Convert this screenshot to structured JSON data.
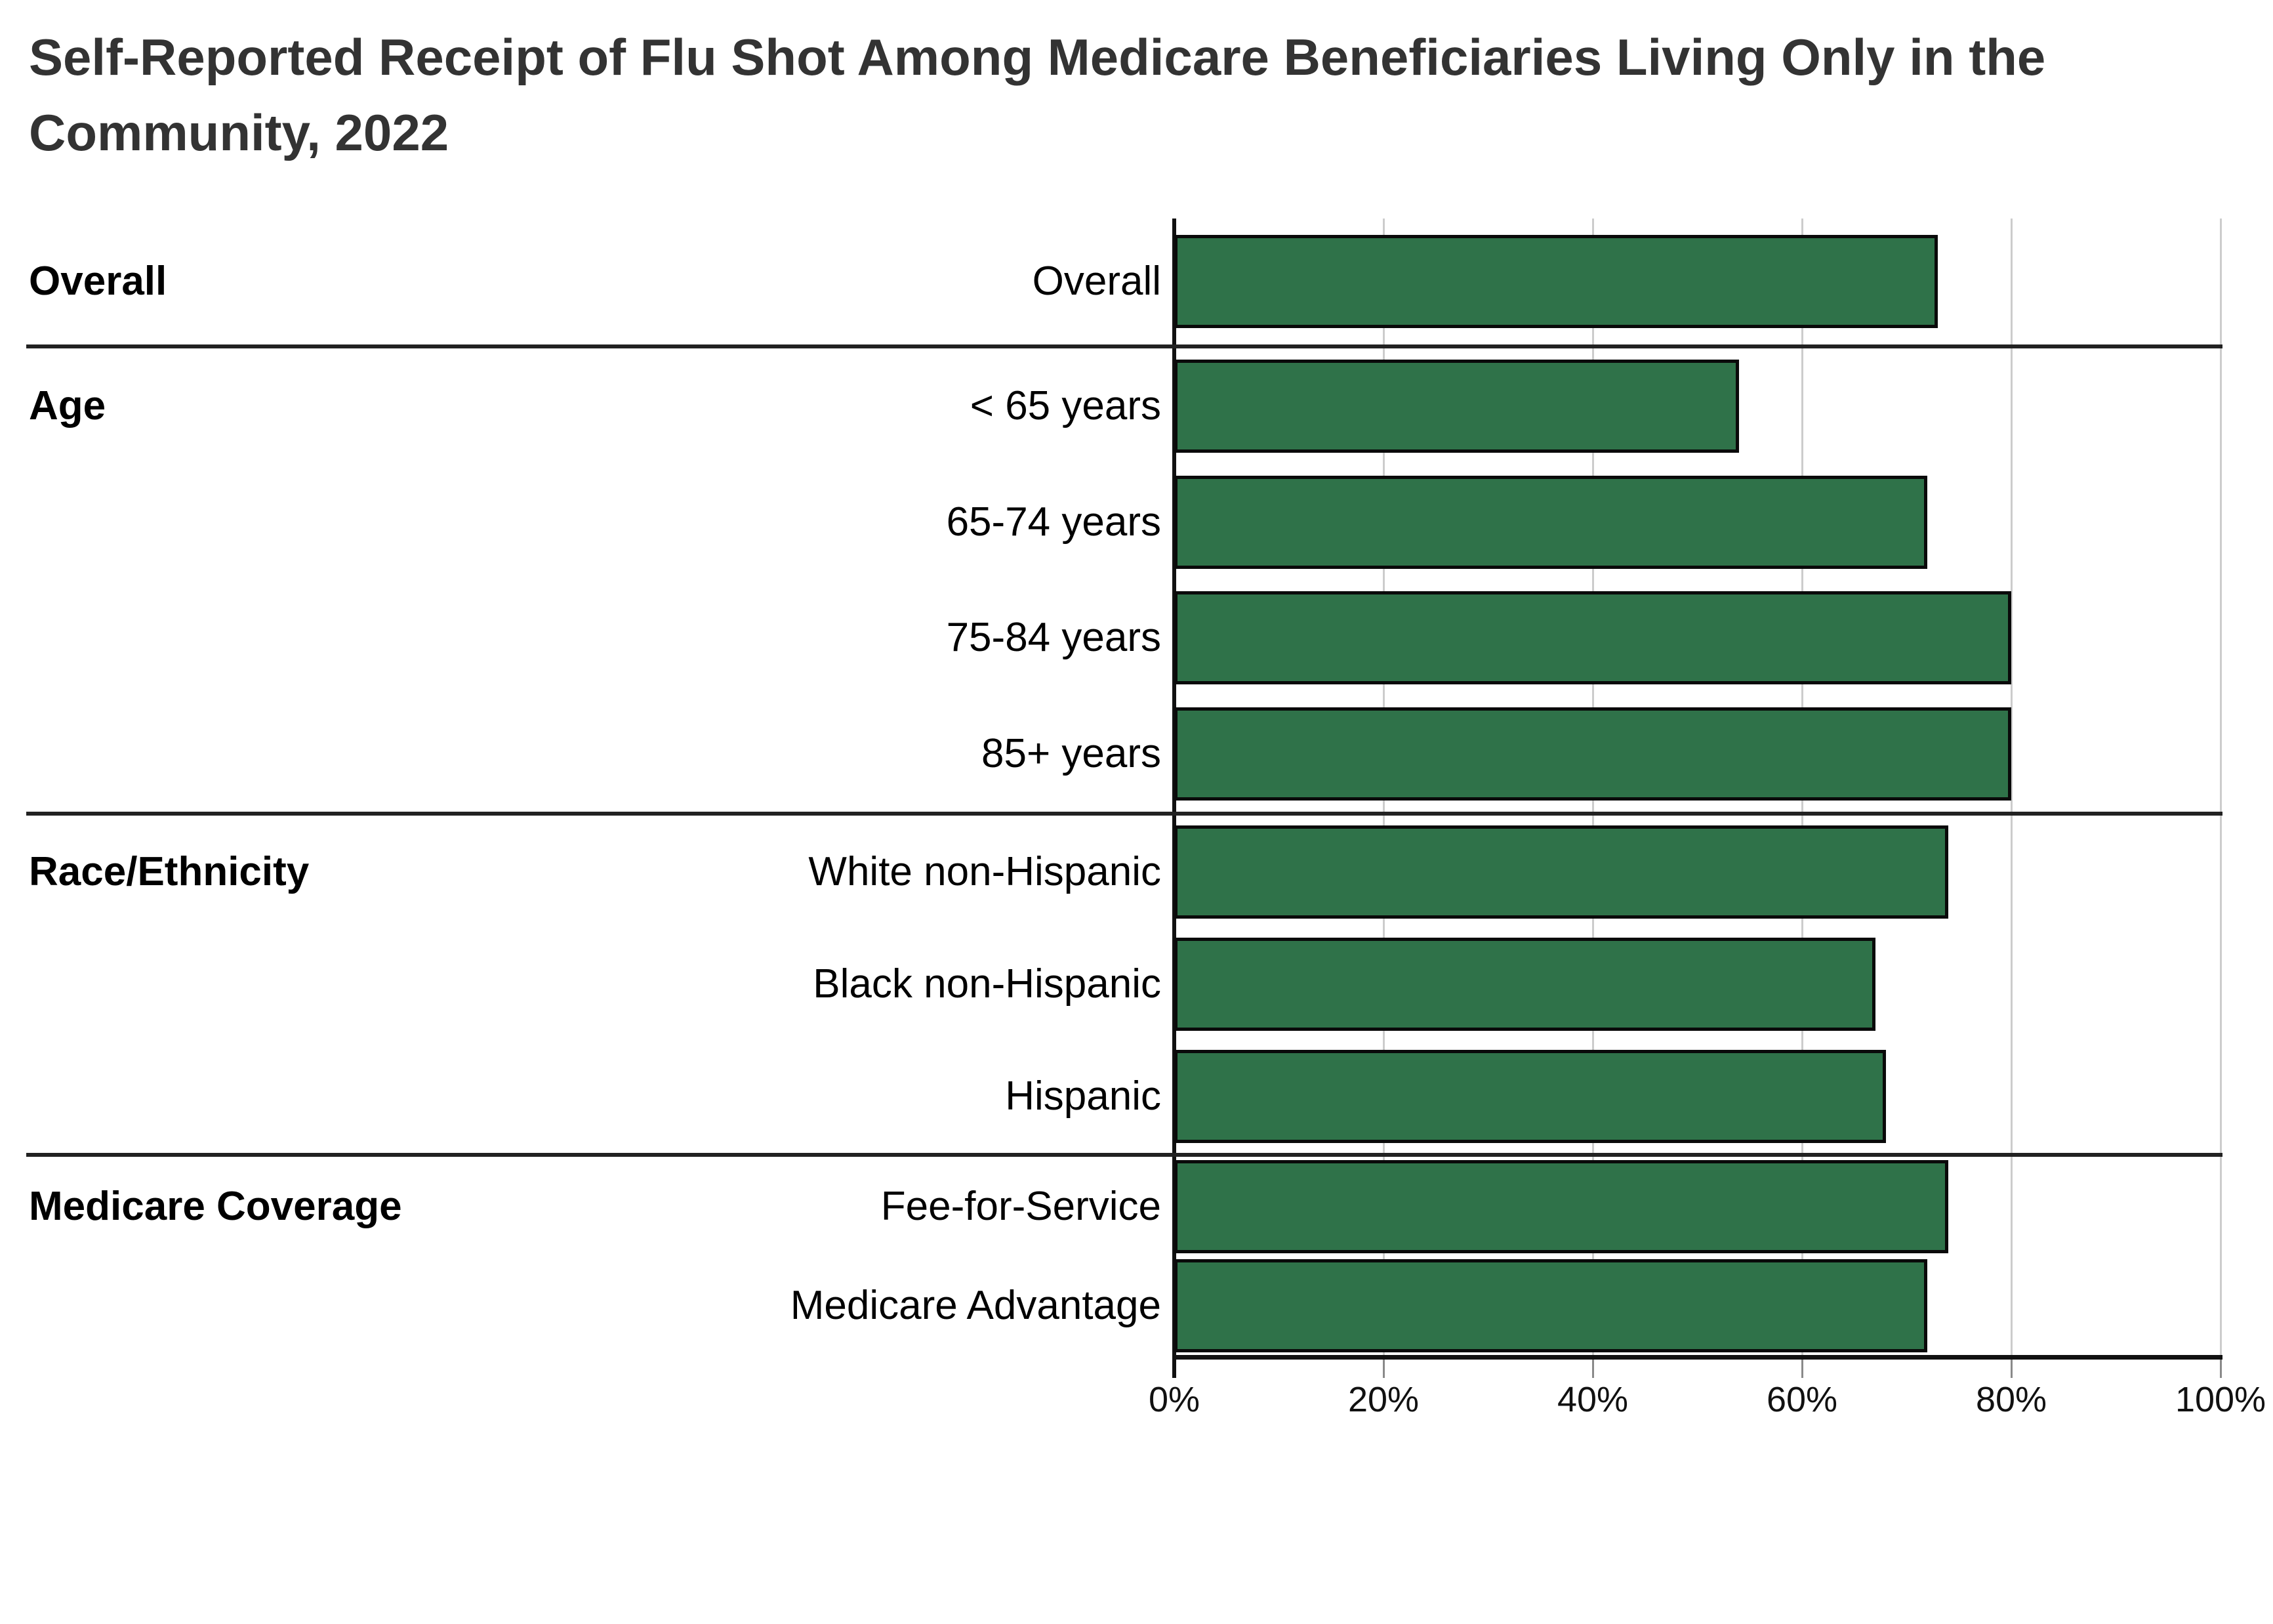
{
  "page": {
    "background": "#ffffff"
  },
  "title": {
    "lines": [
      "Self-Reported Receipt of Flu Shot Among Medicare Beneficiaries Living Only in the",
      "Community, 2022"
    ],
    "full_text": "Self-Reported Receipt of Flu Shot Among Medicare Beneficiaries Living Only in the Community, 2022",
    "color": "#333333"
  },
  "colors": {
    "bar_fill": "#2f7249",
    "bar_border": "#0a0a0a",
    "gridline": "#cccccc",
    "axis_line": "#111111",
    "section_divider": "#222222",
    "title_text": "#333333",
    "label_text": "#000000"
  },
  "chart_data": {
    "type": "bar",
    "orientation": "horizontal",
    "title": "Self-Reported Receipt of Flu Shot Among Medicare Beneficiaries Living Only in the Community, 2022",
    "unit": "percent",
    "xlim": [
      0,
      100
    ],
    "x_tick_labels": [
      "0%",
      "20%",
      "40%",
      "60%",
      "80%",
      "100%"
    ],
    "x_tick_values": [
      0,
      20,
      40,
      60,
      80,
      100
    ],
    "grid": true,
    "legend": false,
    "groups": [
      {
        "group_label": "Overall",
        "bars": [
          {
            "category": "Overall",
            "value": 73
          }
        ]
      },
      {
        "group_label": "Age",
        "bars": [
          {
            "category": "< 65 years",
            "value": 54
          },
          {
            "category": "65-74 years",
            "value": 72
          },
          {
            "category": "75-84 years",
            "value": 80
          },
          {
            "category": "85+ years",
            "value": 80
          }
        ]
      },
      {
        "group_label": "Race/Ethnicity",
        "bars": [
          {
            "category": "White non-Hispanic",
            "value": 74
          },
          {
            "category": "Black non-Hispanic",
            "value": 67
          },
          {
            "category": "Hispanic",
            "value": 68
          }
        ]
      },
      {
        "group_label": "Medicare Coverage",
        "bars": [
          {
            "category": "Fee-for-Service",
            "value": 74
          },
          {
            "category": "Medicare Advantage",
            "value": 72
          }
        ]
      }
    ]
  }
}
